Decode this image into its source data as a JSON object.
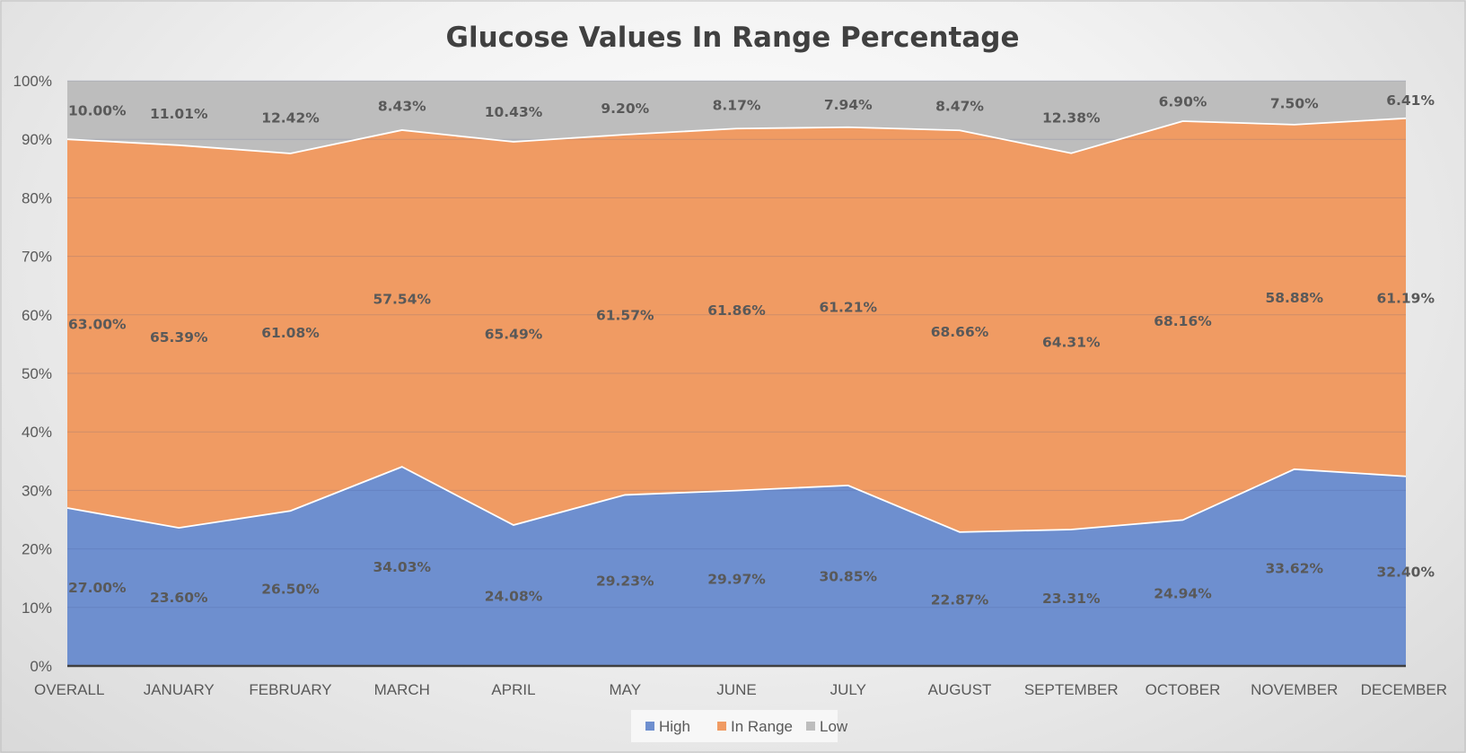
{
  "chart_data": {
    "type": "area",
    "stacked": true,
    "percent_stacked": true,
    "title": "Glucose Values In Range Percentage",
    "categories": [
      "OVERALL",
      "JANUARY",
      "FEBRUARY",
      "MARCH",
      "APRIL",
      "MAY",
      "JUNE",
      "JULY",
      "AUGUST",
      "SEPTEMBER",
      "OCTOBER",
      "NOVEMBER",
      "DECEMBER"
    ],
    "series": [
      {
        "name": "High",
        "color": "#6e8fcf",
        "values": [
          27.0,
          23.6,
          26.5,
          34.03,
          24.08,
          29.23,
          29.97,
          30.85,
          22.87,
          23.31,
          24.94,
          33.62,
          32.4
        ],
        "labels": [
          "27.00%",
          "23.60%",
          "26.50%",
          "34.03%",
          "24.08%",
          "29.23%",
          "29.97%",
          "30.85%",
          "22.87%",
          "23.31%",
          "24.94%",
          "33.62%",
          "32.40%"
        ]
      },
      {
        "name": "In Range",
        "color": "#f09b63",
        "values": [
          63.0,
          65.39,
          61.08,
          57.54,
          65.49,
          61.57,
          61.86,
          61.21,
          68.66,
          64.31,
          68.16,
          58.88,
          61.19
        ],
        "labels": [
          "63.00%",
          "65.39%",
          "61.08%",
          "57.54%",
          "65.49%",
          "61.57%",
          "61.86%",
          "61.21%",
          "68.66%",
          "64.31%",
          "68.16%",
          "58.88%",
          "61.19%"
        ]
      },
      {
        "name": "Low",
        "color": "#bdbdbd",
        "values": [
          10.0,
          11.01,
          12.42,
          8.43,
          10.43,
          9.2,
          8.17,
          7.94,
          8.47,
          12.38,
          6.9,
          7.5,
          6.41
        ],
        "labels": [
          "10.00%",
          "11.01%",
          "12.42%",
          "8.43%",
          "10.43%",
          "9.20%",
          "8.17%",
          "7.94%",
          "8.47%",
          "12.38%",
          "6.90%",
          "7.50%",
          "6.41%"
        ]
      }
    ],
    "ylim": [
      0,
      100
    ],
    "yticks": [
      "0%",
      "10%",
      "20%",
      "30%",
      "40%",
      "50%",
      "60%",
      "70%",
      "80%",
      "90%",
      "100%"
    ],
    "grid": true,
    "legend_position": "bottom"
  }
}
